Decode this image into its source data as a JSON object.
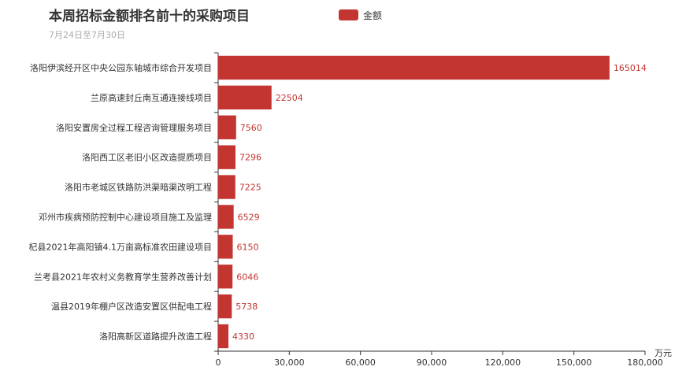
{
  "chart_data": {
    "type": "bar",
    "orientation": "horizontal",
    "title": "本周招标金额排名前十的采购项目",
    "subtitle": "7月24日至7月30日",
    "categories": [
      "洛阳伊滨经开区中央公园东轴城市综合开发项目",
      "兰原高速封丘南互通连接线项目",
      "洛阳安置房全过程工程咨询管理服务项目",
      "洛阳西工区老旧小区改造提质项目",
      "洛阳市老城区铁路防洪渠暗渠改明工程",
      "邓州市疾病预防控制中心建设项目施工及监理",
      "杞县2021年高阳镇4.1万亩高标准农田建设项目",
      "兰考县2021年农村义务教育学生营养改善计划",
      "温县2019年棚户区改造安置区供配电工程",
      "洛阳高新区道路提升改造工程"
    ],
    "series": [
      {
        "name": "金额",
        "color": "#c23531",
        "values": [
          165014,
          22504,
          7560,
          7296,
          7225,
          6529,
          6150,
          6046,
          5738,
          4330
        ]
      }
    ],
    "xlim": [
      0,
      180000
    ],
    "xticks": [
      "0",
      "30,000",
      "60,000",
      "90,000",
      "120,000",
      "150,000",
      "180,000"
    ],
    "xunit": "万元",
    "grid": false,
    "legend_position": "top-center"
  }
}
